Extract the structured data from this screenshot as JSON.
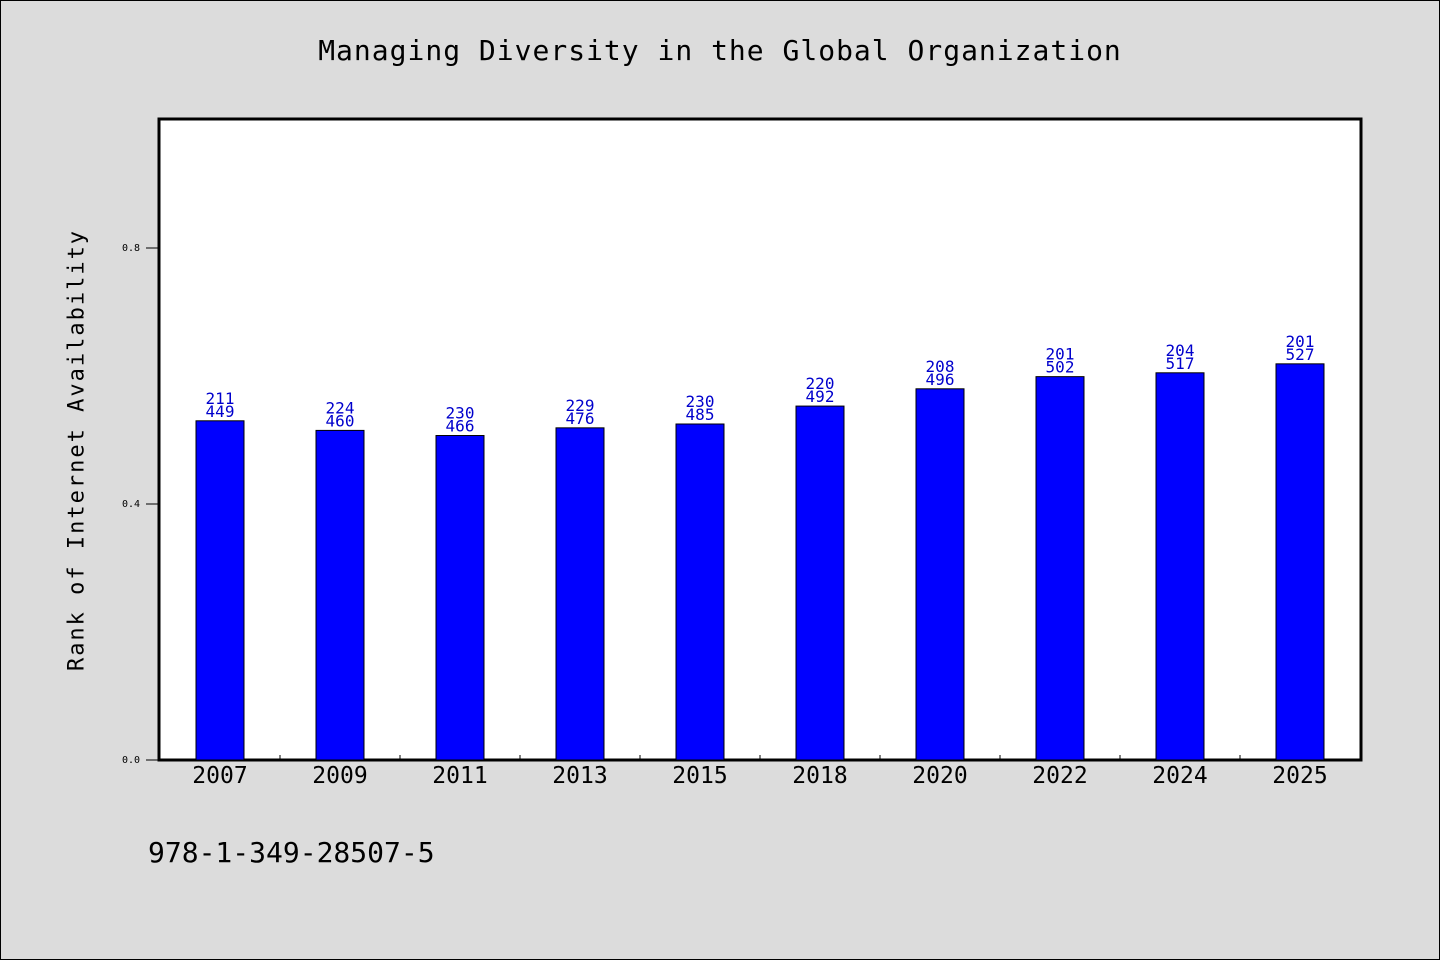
{
  "chart_data": {
    "type": "bar",
    "title": "Managing Diversity in the Global Organization",
    "ylabel": "Rank of Internet Availability",
    "xlabel": "",
    "categories": [
      "2007",
      "2009",
      "2011",
      "2013",
      "2015",
      "2018",
      "2020",
      "2022",
      "2024",
      "2025"
    ],
    "values": [
      0.53,
      0.515,
      0.507,
      0.519,
      0.525,
      0.553,
      0.58,
      0.599,
      0.605,
      0.619
    ],
    "label_top": [
      "211",
      "224",
      "230",
      "229",
      "230",
      "220",
      "208",
      "201",
      "204",
      "201"
    ],
    "label_bottom": [
      "449",
      "460",
      "466",
      "476",
      "485",
      "492",
      "496",
      "502",
      "517",
      "527"
    ],
    "ylim": [
      0,
      1.0
    ],
    "yticks": [
      0.0,
      0.4,
      0.8
    ],
    "ytick_labels": [
      "0.0",
      "0.4",
      "0.8"
    ],
    "grid": false,
    "bar_color": "#0000ff",
    "label_color": "#0000cc"
  },
  "footer": {
    "isbn": "978-1-349-28507-5"
  }
}
